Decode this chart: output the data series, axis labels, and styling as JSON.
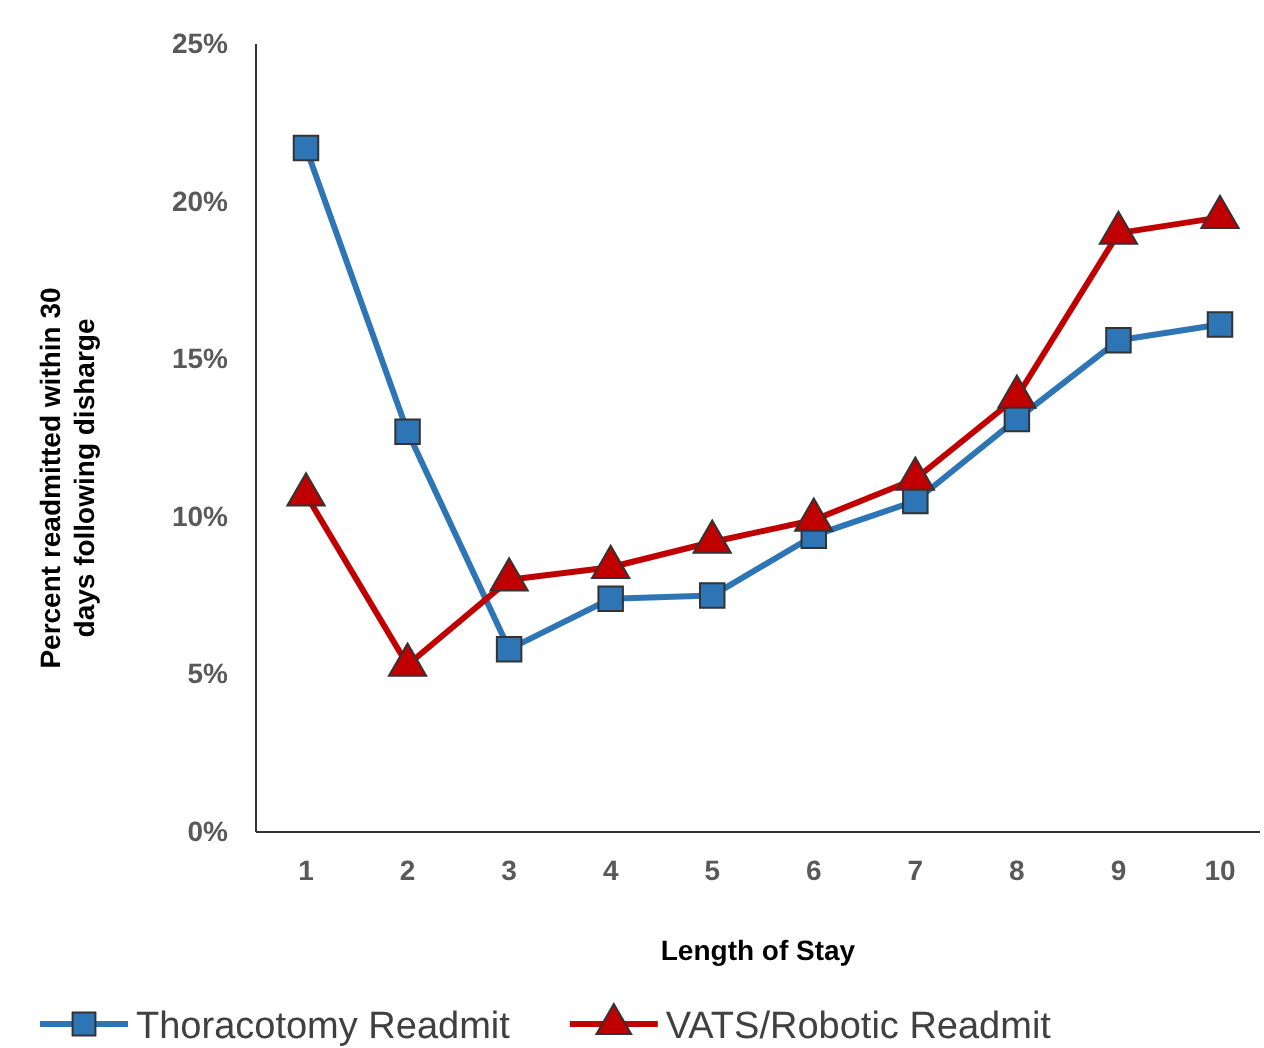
{
  "chart_data": {
    "type": "line",
    "xlabel": "Length of Stay",
    "ylabel": "Percent readmitted within 30 days following disharge",
    "categories": [
      "1",
      "2",
      "3",
      "4",
      "5",
      "6",
      "7",
      "8",
      "9",
      "10"
    ],
    "series": [
      {
        "name": "Thoracotomy Readmit",
        "color": "#2e75b6",
        "marker": "square",
        "values": [
          21.7,
          12.7,
          5.8,
          7.4,
          7.5,
          9.4,
          10.5,
          13.1,
          15.6,
          16.1
        ]
      },
      {
        "name": "VATS/Robotic Readmit",
        "color": "#c00000",
        "marker": "triangle",
        "values": [
          10.7,
          5.3,
          8.0,
          8.4,
          9.2,
          9.9,
          11.2,
          13.8,
          19.0,
          19.5
        ]
      }
    ],
    "ylim": [
      0,
      25
    ],
    "yticks": [
      {
        "value": 0,
        "label": "0%"
      },
      {
        "value": 5,
        "label": "5%"
      },
      {
        "value": 10,
        "label": "10%"
      },
      {
        "value": 15,
        "label": "15%"
      },
      {
        "value": 20,
        "label": "20%"
      },
      {
        "value": 25,
        "label": "25%"
      }
    ],
    "grid": false,
    "legend": "bottom"
  }
}
